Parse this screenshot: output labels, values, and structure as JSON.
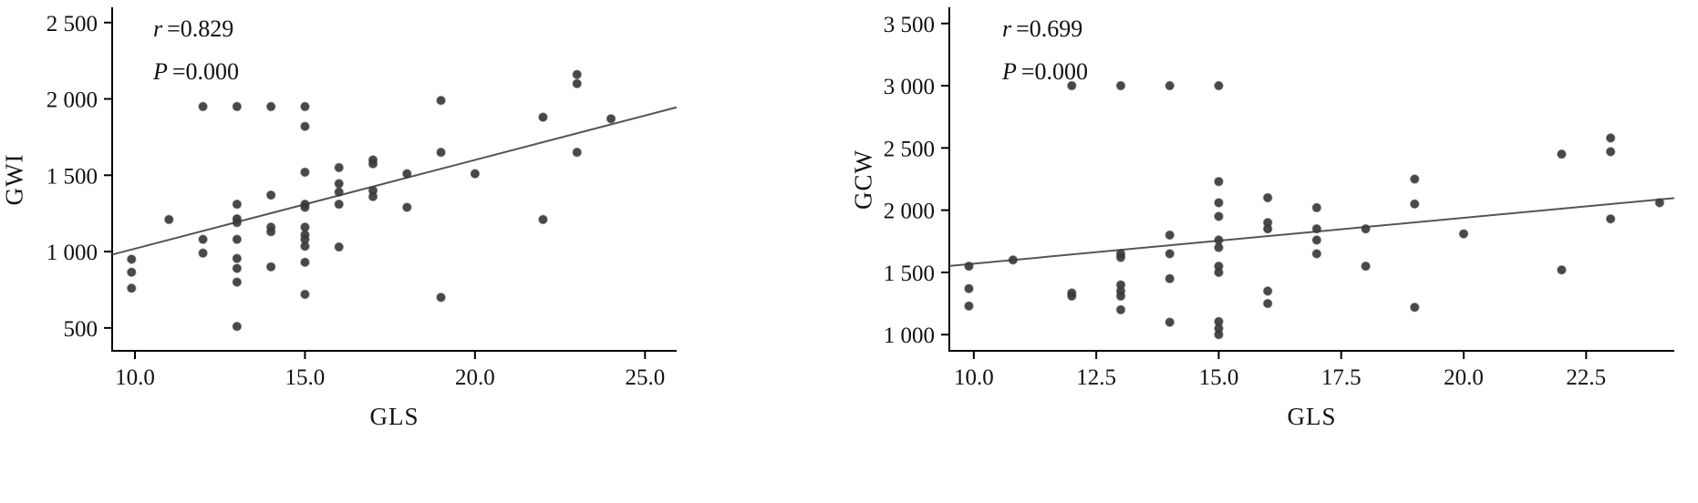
{
  "chart_data": [
    {
      "type": "scatter",
      "title": "",
      "xlabel": "GLS",
      "ylabel": "GWI",
      "annotation": {
        "r_var": "r",
        "r_value": "=0.829",
        "p_var": "P",
        "p_value": "=0.000"
      },
      "xlim": [
        9.33,
        25.93
      ],
      "ylim": [
        350,
        2600
      ],
      "xticks": [
        10.0,
        15.0,
        20.0,
        25.0
      ],
      "xtick_labels": [
        "10.0",
        "15.0",
        "20.0",
        "25.0"
      ],
      "yticks": [
        500,
        1000,
        1500,
        2000,
        2500
      ],
      "ytick_labels": [
        "500",
        "1 000",
        "1 500",
        "2 000",
        "2 500"
      ],
      "grid": false,
      "legend": "none",
      "points": [
        [
          9.9,
          950
        ],
        [
          9.9,
          865
        ],
        [
          9.9,
          760
        ],
        [
          11,
          1210
        ],
        [
          12,
          1950
        ],
        [
          12,
          1080
        ],
        [
          12,
          990
        ],
        [
          13,
          1950
        ],
        [
          13,
          1310
        ],
        [
          13,
          1215
        ],
        [
          13,
          1190
        ],
        [
          13,
          1080
        ],
        [
          13,
          955
        ],
        [
          13,
          890
        ],
        [
          13,
          800
        ],
        [
          13,
          510
        ],
        [
          14,
          1950
        ],
        [
          14,
          1370
        ],
        [
          14,
          1160
        ],
        [
          14,
          1130
        ],
        [
          14,
          900
        ],
        [
          15,
          1950
        ],
        [
          15,
          1820
        ],
        [
          15,
          1520
        ],
        [
          15,
          1310
        ],
        [
          15,
          1290
        ],
        [
          15,
          1160
        ],
        [
          15,
          1110
        ],
        [
          15,
          1080
        ],
        [
          15,
          1035
        ],
        [
          15,
          930
        ],
        [
          15,
          720
        ],
        [
          16,
          1550
        ],
        [
          16,
          1445
        ],
        [
          16,
          1390
        ],
        [
          16,
          1310
        ],
        [
          16,
          1030
        ],
        [
          17,
          1600
        ],
        [
          17,
          1575
        ],
        [
          17,
          1400
        ],
        [
          17,
          1360
        ],
        [
          18,
          1510
        ],
        [
          18,
          1290
        ],
        [
          19,
          1990
        ],
        [
          19,
          1650
        ],
        [
          19,
          700
        ],
        [
          20,
          1510
        ],
        [
          22,
          1880
        ],
        [
          22,
          1210
        ],
        [
          23,
          2160
        ],
        [
          23,
          2100
        ],
        [
          23,
          1650
        ],
        [
          24,
          1870
        ]
      ],
      "fit_line": {
        "x1": 9.33,
        "y1": 980,
        "x2": 25.93,
        "y2": 1945
      },
      "colors": {
        "point": "#3a3a3a",
        "line": "#555555",
        "axis": "#000000"
      }
    },
    {
      "type": "scatter",
      "title": "",
      "xlabel": "GLS",
      "ylabel": "GCW",
      "annotation": {
        "r_var": "r",
        "r_value": "=0.699",
        "p_var": "P",
        "p_value": "=0.000"
      },
      "xlim": [
        9.5,
        24.3
      ],
      "ylim": [
        870,
        3630
      ],
      "xticks": [
        10.0,
        12.5,
        15.0,
        17.5,
        20.0,
        22.5
      ],
      "xtick_labels": [
        "10.0",
        "12.5",
        "15.0",
        "17.5",
        "20.0",
        "22.5"
      ],
      "yticks": [
        1000,
        1500,
        2000,
        2500,
        3000,
        3500
      ],
      "ytick_labels": [
        "1 000",
        "1 500",
        "2 000",
        "2 500",
        "3 000",
        "3 500"
      ],
      "grid": false,
      "legend": "none",
      "points": [
        [
          9.9,
          1550
        ],
        [
          9.9,
          1370
        ],
        [
          9.9,
          1230
        ],
        [
          10.8,
          1600
        ],
        [
          12,
          3000
        ],
        [
          12,
          1335
        ],
        [
          12,
          1310
        ],
        [
          13,
          3000
        ],
        [
          13,
          1650
        ],
        [
          13,
          1620
        ],
        [
          13,
          1400
        ],
        [
          13,
          1350
        ],
        [
          13,
          1310
        ],
        [
          13,
          1200
        ],
        [
          14,
          3000
        ],
        [
          14,
          1800
        ],
        [
          14,
          1650
        ],
        [
          14,
          1450
        ],
        [
          14,
          1100
        ],
        [
          15,
          3000
        ],
        [
          15,
          2230
        ],
        [
          15,
          2060
        ],
        [
          15,
          1950
        ],
        [
          15,
          1760
        ],
        [
          15,
          1700
        ],
        [
          15,
          1550
        ],
        [
          15,
          1500
        ],
        [
          15,
          1105
        ],
        [
          15,
          1050
        ],
        [
          15,
          1000
        ],
        [
          16,
          2100
        ],
        [
          16,
          1900
        ],
        [
          16,
          1850
        ],
        [
          16,
          1350
        ],
        [
          16,
          1250
        ],
        [
          17,
          2020
        ],
        [
          17,
          1850
        ],
        [
          17,
          1760
        ],
        [
          17,
          1650
        ],
        [
          18,
          1850
        ],
        [
          18,
          1550
        ],
        [
          19,
          2250
        ],
        [
          19,
          2050
        ],
        [
          19,
          1220
        ],
        [
          20,
          1810
        ],
        [
          22,
          2450
        ],
        [
          22,
          1520
        ],
        [
          23,
          2580
        ],
        [
          23,
          2470
        ],
        [
          23,
          1930
        ],
        [
          24,
          2060
        ]
      ],
      "fit_line": {
        "x1": 9.5,
        "y1": 1552,
        "x2": 24.3,
        "y2": 2097
      },
      "colors": {
        "point": "#3a3a3a",
        "line": "#555555",
        "axis": "#000000"
      }
    }
  ]
}
